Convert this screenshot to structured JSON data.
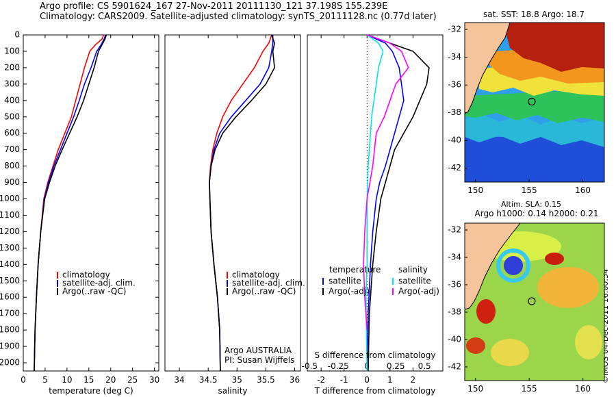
{
  "header": {
    "line1": "Argo profile: CS 5901624_167 27-Nov-2011 20111130_121 37.198S 155.239E",
    "line2": "Climatology: CARS2009. Satellite-adjusted climatology: synTS_20111128.nc (0.77d later)"
  },
  "footer_stamp": "©IMOS 04-Dec-2011 16:00:54",
  "colors": {
    "climatology": "#ff0000",
    "satellite": "#0000ff",
    "argo": "#000000",
    "sal_satellite": "#00e5e5",
    "sal_argo": "#ff00ff",
    "land": "#f5c49b"
  },
  "chart_data": [
    {
      "type": "line",
      "id": "temperature",
      "xlabel": "temperature (deg C)",
      "ylabel": "",
      "xlim": [
        0,
        31
      ],
      "ylim": [
        0,
        2050
      ],
      "y_inverted": true,
      "xticks": [
        0,
        5,
        10,
        15,
        20,
        25,
        30
      ],
      "yticks": [
        0,
        100,
        200,
        300,
        400,
        500,
        600,
        700,
        800,
        900,
        1000,
        1100,
        1200,
        1300,
        1400,
        1500,
        1600,
        1700,
        1800,
        1900,
        2000
      ],
      "legend": [
        "climatology",
        "satellite-adj. clim.",
        "Argo(..raw -QC)"
      ],
      "series": [
        {
          "name": "climatology",
          "color": "#ff0000",
          "x": [
            18.4,
            18.0,
            16.5,
            15.2,
            14.0,
            13.0,
            12.0,
            11.0,
            9.5,
            8.0,
            6.8,
            5.6,
            4.7,
            4.0,
            3.4,
            3.0,
            2.7,
            2.5
          ],
          "depth": [
            0,
            25,
            60,
            100,
            200,
            300,
            400,
            500,
            600,
            700,
            800,
            900,
            1000,
            1200,
            1400,
            1600,
            1800,
            2050
          ]
        },
        {
          "name": "satellite-adj. clim.",
          "color": "#0000ff",
          "x": [
            18.8,
            18.5,
            17.8,
            16.8,
            15.5,
            14.0,
            12.8,
            11.5,
            10.0,
            8.5,
            7.0,
            5.8,
            4.8,
            4.0,
            3.4,
            3.0,
            2.7,
            2.5
          ],
          "depth": [
            0,
            25,
            60,
            100,
            200,
            300,
            400,
            500,
            600,
            700,
            800,
            900,
            1000,
            1200,
            1400,
            1600,
            1800,
            2050
          ]
        },
        {
          "name": "Argo(..raw -QC)",
          "color": "#000000",
          "x": [
            19.0,
            18.7,
            18.0,
            17.2,
            16.2,
            15.0,
            13.8,
            12.3,
            10.6,
            8.9,
            7.3,
            6.0,
            4.9,
            4.0,
            3.4,
            3.0,
            2.7,
            2.5
          ],
          "depth": [
            0,
            25,
            60,
            100,
            200,
            300,
            400,
            500,
            600,
            700,
            800,
            900,
            1000,
            1200,
            1400,
            1600,
            1800,
            2050
          ]
        }
      ]
    },
    {
      "type": "line",
      "id": "salinity",
      "xlabel": "salinity",
      "xlim": [
        33.75,
        36.1
      ],
      "ylim": [
        0,
        2050
      ],
      "y_inverted": true,
      "xticks": [
        34,
        34.5,
        35,
        35.5,
        36
      ],
      "legend": [
        "climatology",
        "satellite-adj. clim.",
        "Argo(..raw -QC)"
      ],
      "annotation": [
        "Argo AUSTRALIA",
        "PI: Susan Wijffels"
      ],
      "series": [
        {
          "name": "climatology",
          "color": "#ff0000",
          "x": [
            35.6,
            35.55,
            35.45,
            35.3,
            35.1,
            34.9,
            34.75,
            34.65,
            34.58,
            34.54,
            34.52,
            34.53,
            34.55,
            34.6,
            34.66,
            34.7,
            34.71
          ],
          "depth": [
            0,
            50,
            100,
            200,
            300,
            400,
            500,
            600,
            700,
            800,
            900,
            1000,
            1200,
            1400,
            1600,
            1800,
            2050
          ]
        },
        {
          "name": "satellite-adj. clim.",
          "color": "#0000ff",
          "x": [
            35.62,
            35.62,
            35.6,
            35.55,
            35.4,
            35.15,
            34.9,
            34.7,
            34.6,
            34.55,
            34.52,
            34.53,
            34.55,
            34.6,
            34.66,
            34.7,
            34.71
          ],
          "depth": [
            0,
            50,
            100,
            200,
            300,
            400,
            500,
            600,
            700,
            800,
            900,
            1000,
            1200,
            1400,
            1600,
            1800,
            2050
          ]
        },
        {
          "name": "Argo(..raw -QC)",
          "color": "#000000",
          "x": [
            35.6,
            35.65,
            35.62,
            35.65,
            35.5,
            35.25,
            34.98,
            34.75,
            34.62,
            34.55,
            34.52,
            34.53,
            34.55,
            34.6,
            34.66,
            34.7,
            34.71
          ],
          "depth": [
            0,
            50,
            100,
            200,
            300,
            400,
            500,
            600,
            700,
            800,
            900,
            1000,
            1200,
            1400,
            1600,
            1800,
            2050
          ]
        }
      ]
    },
    {
      "type": "line",
      "id": "difference",
      "xlabel": "T difference from climatology",
      "x2label": "S difference from climatology",
      "xlim": [
        -2.6,
        3.3
      ],
      "x2_scale": 5,
      "ylim": [
        0,
        2050
      ],
      "y_inverted": true,
      "xticks": [
        -2,
        -1,
        0,
        1,
        2
      ],
      "x2ticks": [
        -0.5,
        -0.25,
        0,
        0.25,
        0.5
      ],
      "legend_temperature_title": "temperature",
      "legend_salinity_title": "salinity",
      "legend_labels": [
        "satellite",
        "Argo(-adj)"
      ],
      "series": [
        {
          "name": "satellite",
          "group": "temperature",
          "color": "#0000ff",
          "x": [
            0.0,
            0.8,
            1.1,
            1.4,
            1.5,
            1.6,
            1.4,
            1.2,
            1.0,
            0.8,
            0.55,
            0.4,
            0.25,
            0.15,
            0.05,
            0.0
          ],
          "depth": [
            0,
            50,
            100,
            200,
            300,
            400,
            500,
            600,
            700,
            800,
            900,
            1000,
            1200,
            1400,
            1700,
            2050
          ]
        },
        {
          "name": "Argo(-adj)",
          "group": "temperature",
          "color": "#000000",
          "x": [
            0.0,
            1.0,
            2.0,
            2.7,
            2.6,
            2.3,
            2.0,
            1.6,
            1.2,
            1.0,
            0.8,
            0.6,
            0.4,
            0.25,
            0.1,
            0.05
          ],
          "depth": [
            0,
            50,
            100,
            200,
            300,
            400,
            500,
            600,
            700,
            800,
            900,
            1000,
            1200,
            1400,
            1700,
            2050
          ]
        },
        {
          "name": "satellite",
          "group": "salinity",
          "color": "#00e5e5",
          "x": [
            0.0,
            0.1,
            0.14,
            0.1,
            0.08,
            0.06,
            0.04,
            0.03,
            0.01,
            0.0,
            0.0,
            0.0,
            -0.01,
            -0.005,
            0.0
          ],
          "depth": [
            0,
            50,
            100,
            200,
            300,
            400,
            500,
            600,
            800,
            1000,
            1200,
            1400,
            1600,
            1800,
            2050
          ]
        },
        {
          "name": "Argo(-adj)",
          "group": "salinity",
          "color": "#ff00ff",
          "x": [
            0.0,
            0.2,
            0.3,
            0.36,
            0.25,
            0.2,
            0.15,
            0.08,
            0.05,
            0.0,
            -0.02,
            -0.03,
            -0.02,
            0.0
          ],
          "depth": [
            0,
            50,
            100,
            200,
            300,
            400,
            500,
            600,
            800,
            1000,
            1200,
            1400,
            1600,
            1800
          ]
        }
      ]
    },
    {
      "type": "heatmap",
      "id": "sst_map",
      "title": "sat. SST: 18.8 Argo: 18.7",
      "xlim": [
        149,
        162
      ],
      "ylim": [
        -43,
        -31.5
      ],
      "xticks": [
        150,
        155,
        160
      ],
      "yticks": [
        -32,
        -34,
        -36,
        -38,
        -40,
        -42
      ],
      "argo_marker": {
        "lon": 155.24,
        "lat": -37.2
      }
    },
    {
      "type": "heatmap",
      "id": "sla_map",
      "title_line1": "Altim. SLA: 0.15",
      "title_line2": "Argo h1000: 0.14 h2000: 0.21",
      "xlim": [
        149,
        162
      ],
      "ylim": [
        -43,
        -31.5
      ],
      "xticks": [
        150,
        155,
        160
      ],
      "yticks": [
        -32,
        -34,
        -36,
        -38,
        -40,
        -42
      ],
      "argo_marker": {
        "lon": 155.24,
        "lat": -37.2
      }
    }
  ]
}
